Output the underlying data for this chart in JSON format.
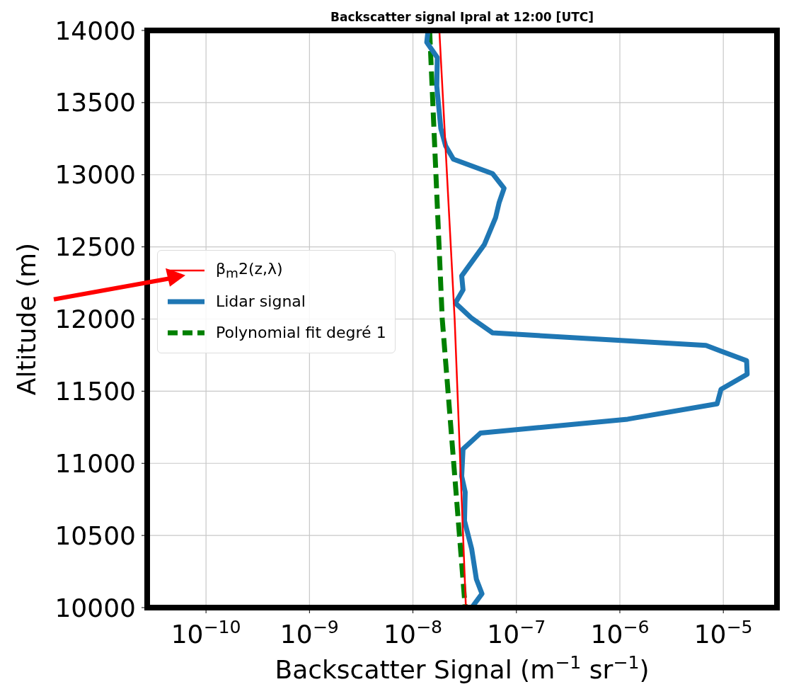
{
  "chart_data": {
    "type": "line",
    "title": "Backscatter signal Ipral at 12:00 [UTC]",
    "xlabel": "Backscatter Signal (m$^{−1}$ sr$^{−1}$)",
    "ylabel": "Altitude (m)",
    "log": "x",
    "xlim": [
      2.7e-11,
      3.3e-05
    ],
    "xticks": [
      {
        "value": 1e-10,
        "label": "10$^{−10}$"
      },
      {
        "value": 1e-09,
        "label": "10$^{−9}$"
      },
      {
        "value": 1e-08,
        "label": "10$^{−8}$"
      },
      {
        "value": 1e-07,
        "label": "10$^{−7}$"
      },
      {
        "value": 1e-06,
        "label": "10$^{−6}$"
      },
      {
        "value": 1e-05,
        "label": "10$^{−5}$"
      }
    ],
    "ylim": [
      10000,
      14000
    ],
    "yticks": [
      10000,
      10500,
      11000,
      11500,
      12000,
      12500,
      13000,
      13500,
      14000
    ],
    "grid": true,
    "legend": "left",
    "marker": "none",
    "series": [
      {
        "name": "β$_{m}$2(z,λ)",
        "color": "#ff0000",
        "line_style": "solid",
        "x": [
          1.8e-08,
          2.53e-08,
          3.25e-08
        ],
        "values": [
          14000,
          12000,
          10000
        ]
      },
      {
        "name": "Lidar signal",
        "color": "#1f77b4",
        "line_style": "solid",
        "x": [
          1.4e-08,
          1.36e-08,
          1.72e-08,
          1.7e-08,
          1.86e-08,
          2.07e-08,
          2.46e-08,
          5.9e-08,
          7.6e-08,
          6.8e-08,
          6.3e-08,
          4.9e-08,
          2.96e-08,
          3.05e-08,
          2.57e-08,
          3.7e-08,
          5.9e-08,
          6.8e-06,
          1.68e-05,
          1.7e-05,
          9.5e-06,
          8.7e-06,
          1.19e-06,
          4.5e-08,
          3.05e-08,
          2.96e-08,
          3.2e-08,
          3.15e-08,
          3.7e-08,
          4.1e-08,
          4.65e-08,
          3.7e-08
        ],
        "values": [
          14000,
          13918,
          13812,
          13614,
          13320,
          13200,
          13108,
          13007,
          12906,
          12805,
          12704,
          12516,
          12299,
          12202,
          12111,
          12005,
          11904,
          11817,
          11711,
          11617,
          11513,
          11412,
          11306,
          11210,
          11099,
          10911,
          10800,
          10602,
          10405,
          10198,
          10096,
          10000
        ]
      },
      {
        "name": "Polynomial fit degré 1",
        "color": "#008000",
        "line_style": "dashed",
        "x": [
          1.45e-08,
          1.92e-08,
          3.2e-08
        ],
        "values": [
          14000,
          12000,
          10000
        ]
      }
    ]
  }
}
